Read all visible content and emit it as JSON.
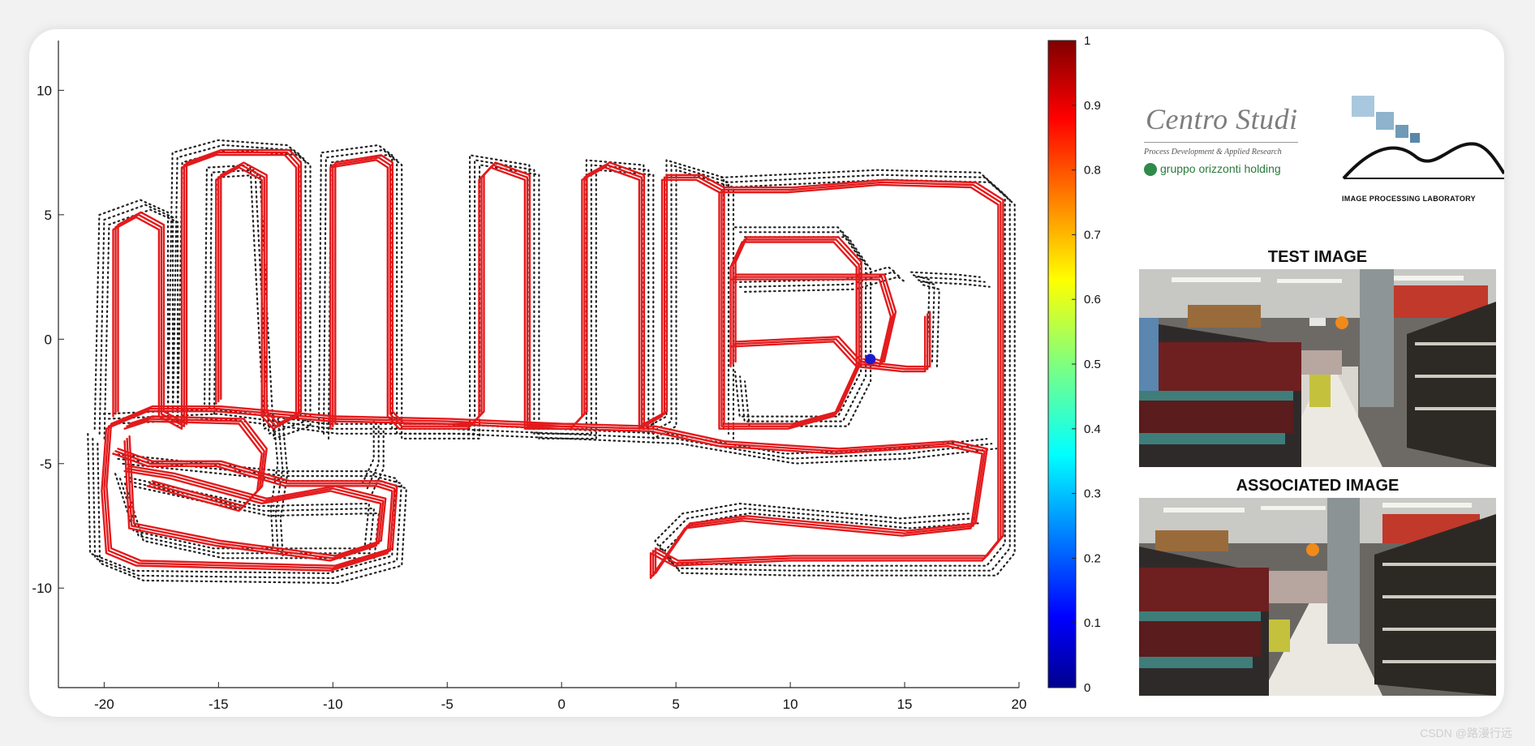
{
  "chart_data": {
    "type": "line",
    "title": "",
    "xlabel": "",
    "ylabel": "",
    "xlim": [
      -22,
      20
    ],
    "ylim": [
      -14,
      12
    ],
    "x_ticks": [
      -20,
      -15,
      -10,
      -5,
      0,
      5,
      10,
      15,
      20
    ],
    "y_ticks": [
      10,
      5,
      0,
      -5,
      -10
    ],
    "grid": false,
    "series": [
      {
        "style": "red-solid",
        "color": "#e31a1c",
        "segments": [
          [
            [
              -19.5,
              -3
            ],
            [
              -19.5,
              4.5
            ],
            [
              -18.5,
              5
            ],
            [
              -17.5,
              4.5
            ],
            [
              -17.5,
              -3
            ],
            [
              -16.5,
              -3.5
            ],
            [
              -16.5,
              7
            ],
            [
              -15,
              7.5
            ],
            [
              -12,
              7.5
            ],
            [
              -11.5,
              7
            ],
            [
              -11.5,
              -3
            ],
            [
              -12.5,
              -3.5
            ],
            [
              -13,
              -3
            ],
            [
              -13,
              6.5
            ],
            [
              -14,
              7
            ],
            [
              -15,
              6.5
            ],
            [
              -15,
              -2.5
            ]
          ],
          [
            [
              -10,
              -3.5
            ],
            [
              -10,
              7
            ],
            [
              -8,
              7.3
            ],
            [
              -7.5,
              7
            ],
            [
              -7.5,
              -3
            ],
            [
              -7,
              -3.5
            ],
            [
              -4,
              -3.5
            ],
            [
              -3.5,
              -3
            ],
            [
              -3.5,
              6.5
            ],
            [
              -3,
              7
            ],
            [
              -1.5,
              6.5
            ],
            [
              -1.5,
              -3.5
            ],
            [
              0.5,
              -3.5
            ],
            [
              1,
              -3
            ],
            [
              1,
              6.5
            ],
            [
              2,
              7
            ],
            [
              3.5,
              6.5
            ],
            [
              3.5,
              -3.5
            ]
          ],
          [
            [
              3.5,
              -3.5
            ],
            [
              4.5,
              -3
            ],
            [
              4.5,
              6.5
            ],
            [
              6,
              6.5
            ],
            [
              7,
              6
            ],
            [
              7,
              -3.5
            ],
            [
              10,
              -3.5
            ],
            [
              12,
              -3
            ],
            [
              13,
              -1
            ],
            [
              13,
              3
            ],
            [
              12,
              4
            ],
            [
              8,
              4
            ],
            [
              7.5,
              3
            ],
            [
              7.5,
              -1
            ]
          ],
          [
            [
              7.5,
              2.5
            ],
            [
              12,
              2.5
            ],
            [
              14,
              2.5
            ],
            [
              14.5,
              1
            ],
            [
              14,
              -1
            ],
            [
              13.2,
              -0.8
            ]
          ],
          [
            [
              7.5,
              -0.2
            ],
            [
              12,
              0
            ],
            [
              13,
              -1
            ],
            [
              15,
              -1.2
            ],
            [
              16,
              -1.2
            ],
            [
              16,
              1
            ]
          ],
          [
            [
              7,
              6
            ],
            [
              10,
              6
            ],
            [
              14,
              6.3
            ],
            [
              18,
              6.2
            ],
            [
              19.2,
              5.5
            ],
            [
              19.2,
              -8
            ],
            [
              18.5,
              -8.8
            ],
            [
              10,
              -8.8
            ],
            [
              5,
              -9
            ],
            [
              4,
              -8.5
            ],
            [
              4,
              -9.5
            ],
            [
              5.5,
              -7.5
            ],
            [
              8,
              -7.2
            ],
            [
              15,
              -7.8
            ],
            [
              18,
              -7.5
            ],
            [
              18.5,
              -4.5
            ],
            [
              17,
              -4.2
            ],
            [
              12,
              -4.5
            ],
            [
              7,
              -4.2
            ],
            [
              4,
              -3.6
            ],
            [
              0,
              -3.5
            ],
            [
              -5,
              -3.3
            ],
            [
              -10,
              -3.2
            ],
            [
              -15,
              -2.8
            ],
            [
              -18,
              -2.8
            ],
            [
              -19.8,
              -3.5
            ],
            [
              -20,
              -6
            ],
            [
              -19.8,
              -8.5
            ],
            [
              -18.5,
              -9
            ],
            [
              -10,
              -9.2
            ],
            [
              -7.5,
              -8.5
            ],
            [
              -7.3,
              -6
            ],
            [
              -8,
              -5.8
            ],
            [
              -12,
              -5.8
            ],
            [
              -15,
              -5
            ],
            [
              -18,
              -5
            ],
            [
              -19.5,
              -4.5
            ]
          ],
          [
            [
              -19,
              -4
            ],
            [
              -18.8,
              -7.5
            ],
            [
              -15,
              -8.2
            ],
            [
              -10,
              -8.8
            ],
            [
              -8,
              -8.2
            ],
            [
              -7.8,
              -6.5
            ],
            [
              -10,
              -6
            ],
            [
              -13,
              -6.5
            ],
            [
              -17,
              -5.5
            ],
            [
              -19,
              -5.2
            ]
          ],
          [
            [
              -19,
              -3.5
            ],
            [
              -18,
              -3.2
            ],
            [
              -14,
              -3.3
            ],
            [
              -13,
              -4.5
            ],
            [
              -13.2,
              -6
            ],
            [
              -14,
              -6.8
            ],
            [
              -18,
              -5.8
            ]
          ]
        ]
      },
      {
        "style": "black-dotted",
        "color": "#222222",
        "segments": [
          [
            [
              -20.2,
              -3.8
            ],
            [
              -20,
              4.8
            ],
            [
              -18.2,
              5.4
            ],
            [
              -17,
              4.9
            ],
            [
              -17,
              -3.3
            ],
            [
              -16.8,
              7.3
            ],
            [
              -14.8,
              7.8
            ],
            [
              -11.8,
              7.6
            ],
            [
              -11.2,
              7.2
            ],
            [
              -11.2,
              -3.3
            ],
            [
              -12.8,
              -3.8
            ],
            [
              -13.4,
              6.8
            ],
            [
              -15.3,
              6.7
            ],
            [
              -15.4,
              -2.8
            ]
          ],
          [
            [
              -10.4,
              -3.8
            ],
            [
              -10.3,
              7.3
            ],
            [
              -7.8,
              7.6
            ],
            [
              -7.2,
              7.2
            ],
            [
              -7.2,
              -3.8
            ],
            [
              -3.8,
              -3.8
            ],
            [
              -3.8,
              7.2
            ],
            [
              -1.2,
              6.8
            ],
            [
              -1.2,
              -3.8
            ],
            [
              1.3,
              -3.8
            ],
            [
              1.3,
              7
            ],
            [
              3.8,
              6.8
            ],
            [
              3.8,
              -3.8
            ],
            [
              4.8,
              -3.3
            ],
            [
              4.8,
              7
            ],
            [
              7.3,
              6.3
            ],
            [
              7.3,
              -3.8
            ]
          ],
          [
            [
              7.2,
              6.3
            ],
            [
              14,
              6.6
            ],
            [
              18.5,
              6.5
            ],
            [
              19.6,
              5.6
            ],
            [
              19.6,
              -8.4
            ],
            [
              18.8,
              -9.3
            ],
            [
              10,
              -9.3
            ],
            [
              5,
              -9.2
            ],
            [
              4.3,
              -8.3
            ],
            [
              5.5,
              -7.2
            ],
            [
              8,
              -6.8
            ],
            [
              15,
              -7.4
            ],
            [
              18,
              -7.2
            ]
          ],
          [
            [
              -20.5,
              -4
            ],
            [
              -20.4,
              -8.8
            ],
            [
              -18.5,
              -9.5
            ],
            [
              -10,
              -9.6
            ],
            [
              -7.2,
              -8.9
            ],
            [
              -7,
              -5.8
            ],
            [
              -8.2,
              -5.5
            ],
            [
              -12,
              -5.5
            ],
            [
              -19.5,
              -4.8
            ]
          ],
          [
            [
              -19.8,
              -3.2
            ],
            [
              -15,
              -3
            ],
            [
              -10,
              -3.6
            ],
            [
              -5,
              -3.6
            ],
            [
              0,
              -3.8
            ],
            [
              5,
              -4
            ],
            [
              10,
              -4.8
            ],
            [
              15,
              -4.6
            ],
            [
              18.8,
              -4.2
            ]
          ],
          [
            [
              7.8,
              4.3
            ],
            [
              12.3,
              4.3
            ],
            [
              13.3,
              3
            ],
            [
              13.3,
              -1.5
            ],
            [
              12.3,
              -3.3
            ],
            [
              8,
              -3.3
            ],
            [
              7.8,
              -1.5
            ]
          ],
          [
            [
              7.8,
              2.1
            ],
            [
              12.6,
              2.2
            ],
            [
              14.5,
              2.7
            ],
            [
              14.8,
              2.5
            ]
          ],
          [
            [
              15.5,
              2.5
            ],
            [
              17.5,
              2.4
            ],
            [
              18.5,
              2.3
            ]
          ],
          [
            [
              16.2,
              -0.9
            ],
            [
              16.3,
              2.2
            ],
            [
              15.5,
              2.4
            ]
          ],
          [
            [
              -19.3,
              -5.6
            ],
            [
              -18.5,
              -7.9
            ],
            [
              -15,
              -8.6
            ],
            [
              -8.4,
              -8.6
            ],
            [
              -8.2,
              -6.8
            ],
            [
              -13,
              -6.9
            ],
            [
              -19,
              -5.7
            ]
          ],
          [
            [
              -12.4,
              -3.2
            ],
            [
              -12.2,
              -5.2
            ],
            [
              -12.5,
              -7
            ],
            [
              -12.4,
              -8.5
            ]
          ],
          [
            [
              -8,
              -3.5
            ],
            [
              -8,
              -5
            ],
            [
              -8.5,
              -6
            ]
          ]
        ]
      }
    ],
    "current_position": {
      "x": 13.5,
      "y": -0.8,
      "color": "#1a1acc"
    },
    "colorbar": {
      "min": 0,
      "max": 1,
      "ticks": [
        "0",
        "0.1",
        "0.2",
        "0.3",
        "0.4",
        "0.5",
        "0.6",
        "0.7",
        "0.8",
        "0.9",
        "1"
      ],
      "colormap": "jet"
    }
  },
  "logos": {
    "centro_studi": {
      "title": "Centro Studi",
      "subtitle": "Process Development & Applied Research",
      "holding": "gruppo orizzonti holding"
    },
    "ipl": {
      "text": "IMAGE PROCESSING LABORATORY"
    }
  },
  "panels": {
    "test_title": "TEST IMAGE",
    "associated_title": "ASSOCIATED IMAGE"
  },
  "watermark": "CSDN @路漫行远"
}
